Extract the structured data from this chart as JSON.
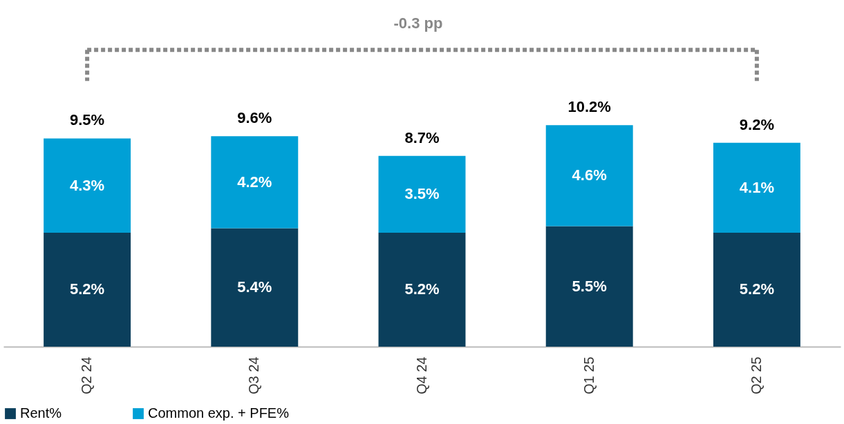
{
  "chart_data": {
    "type": "bar",
    "stacked": true,
    "categories": [
      "Q2 24",
      "Q3 24",
      "Q4 24",
      "Q1 25",
      "Q2 25"
    ],
    "series": [
      {
        "name": "Rent%",
        "color": "#0b3f5c",
        "values": [
          5.2,
          5.4,
          5.2,
          5.5,
          5.2
        ],
        "value_labels": [
          "5.2%",
          "5.4%",
          "5.2%",
          "5.5%",
          "5.2%"
        ]
      },
      {
        "name": "Common exp. + PFE%",
        "color": "#00a0d6",
        "values": [
          4.3,
          4.2,
          3.5,
          4.6,
          4.1
        ],
        "value_labels": [
          "4.3%",
          "4.2%",
          "3.5%",
          "4.6%",
          "4.1%"
        ]
      }
    ],
    "totals": [
      "9.5%",
      "9.6%",
      "8.7%",
      "10.2%",
      "9.2%"
    ],
    "annotations": [
      "-0.3 pp"
    ],
    "legend": "bottom",
    "grid": false,
    "tick_labels": "x"
  }
}
